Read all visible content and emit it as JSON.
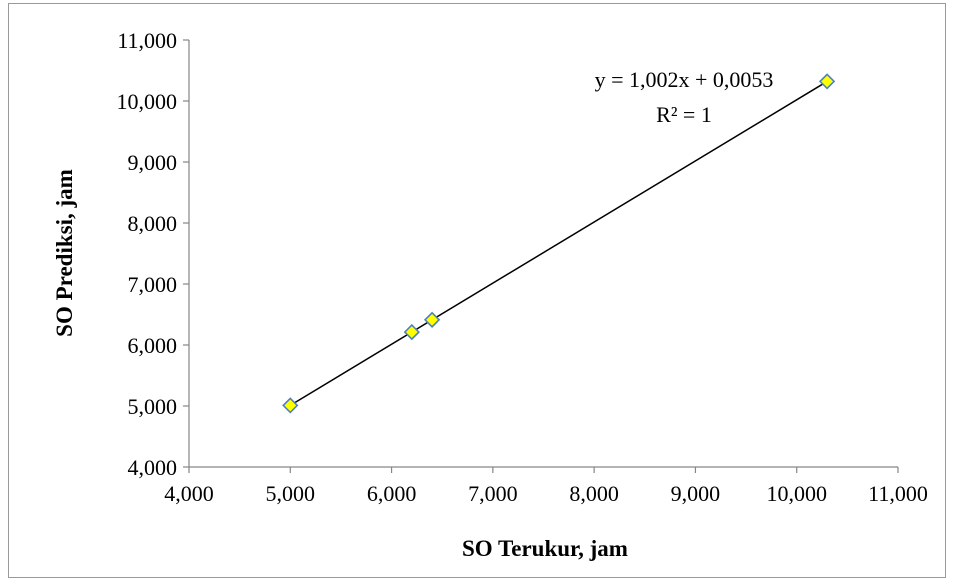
{
  "chart_data": {
    "type": "scatter",
    "xlabel": "SO Terukur, jam",
    "ylabel": "SO Prediksi, jam",
    "xlim": [
      4000,
      11000
    ],
    "ylim": [
      4000,
      11000
    ],
    "x_ticks": [
      "4,000",
      "5,000",
      "6,000",
      "7,000",
      "8,000",
      "9,000",
      "10,000",
      "11,000"
    ],
    "y_ticks": [
      "4,000",
      "5,000",
      "6,000",
      "7,000",
      "8,000",
      "9,000",
      "10,000",
      "11,000"
    ],
    "grid": false,
    "series": [
      {
        "points": [
          {
            "x": 5000,
            "y": 5010
          },
          {
            "x": 6200,
            "y": 6212
          },
          {
            "x": 6400,
            "y": 6413
          },
          {
            "x": 10300,
            "y": 10321
          }
        ],
        "marker": "diamond",
        "marker_fill": "#ffff00",
        "marker_stroke": "#4f81bd"
      }
    ],
    "trendline": {
      "type": "linear",
      "slope": 1.002,
      "intercept": 0.0053,
      "x_range": [
        5000,
        10300
      ],
      "color": "#000000"
    },
    "annotations": {
      "equation": "y = 1,002x + 0,0053",
      "r_squared": "R² = 1"
    }
  }
}
